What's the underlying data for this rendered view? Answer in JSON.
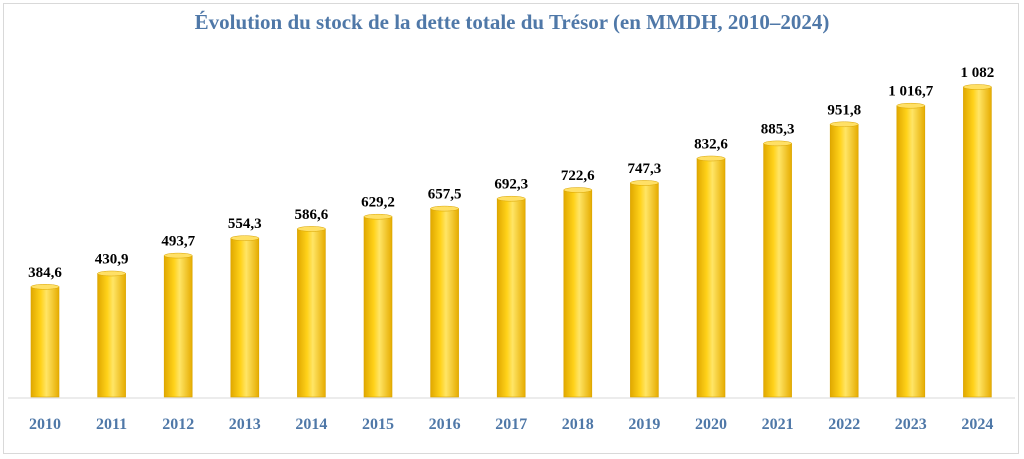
{
  "chart_data": {
    "type": "bar",
    "title": "Évolution du stock de la dette totale du Trésor (en MMDH, 2010–2024)",
    "categories": [
      "2010",
      "2011",
      "2012",
      "2013",
      "2014",
      "2015",
      "2016",
      "2017",
      "2018",
      "2019",
      "2020",
      "2021",
      "2022",
      "2023",
      "2024"
    ],
    "values": [
      384.6,
      430.9,
      493.7,
      554.3,
      586.6,
      629.2,
      657.5,
      692.3,
      722.6,
      747.3,
      832.6,
      885.3,
      951.8,
      1016.7,
      1082
    ],
    "data_labels": [
      "384,6",
      "430,9",
      "493,7",
      "554,3",
      "586,6",
      "629,2",
      "657,5",
      "692,3",
      "722,6",
      "747,3",
      "832,6",
      "885,3",
      "951,8",
      "1 016,7",
      "1 082"
    ],
    "xlabel": "",
    "ylabel": "",
    "ylim": [
      0,
      1100
    ],
    "grid": false,
    "legend": "none",
    "colors": {
      "bar": "#fcc200",
      "bar_highlight": "#ffe066",
      "bar_shadow": "#d9a300",
      "title": "#4f78a8",
      "axis_label": "#4f78a8",
      "data_label": "#000000",
      "axis_line": "#d9d9d9"
    }
  }
}
